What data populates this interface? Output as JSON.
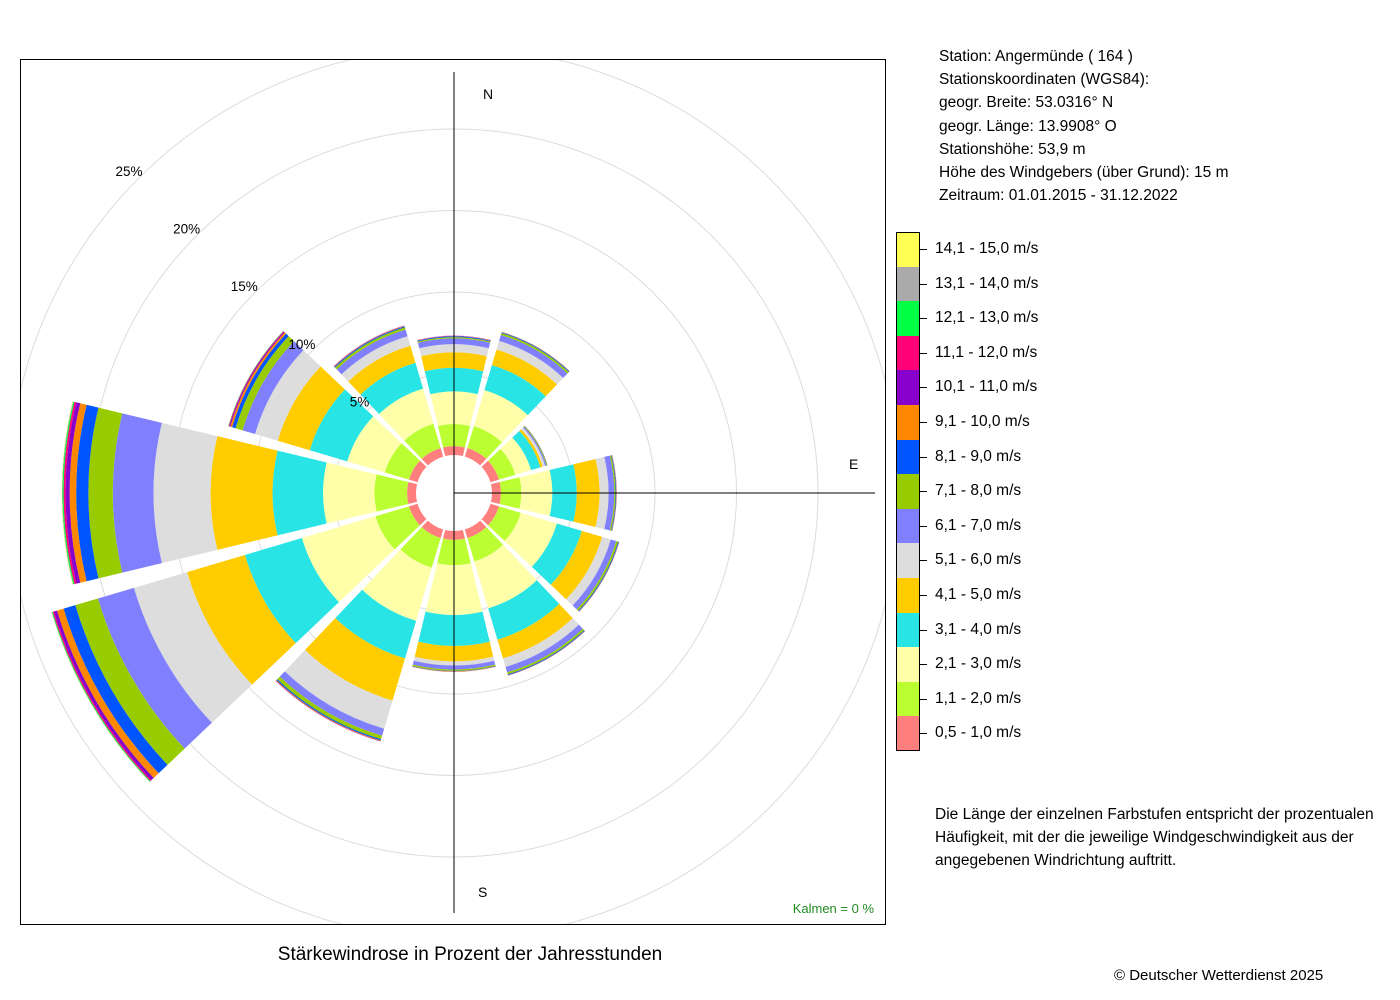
{
  "station": {
    "line1": "Station:  Angermünde  ( 164 )",
    "line2": "Stationskoordinaten (WGS84):",
    "line3": "geogr. Breite: 53.0316° N",
    "line4": "geogr. Länge: 13.9908° O",
    "line5": "Stationshöhe: 53,9 m",
    "line6": "Höhe des Windgebers (über Grund): 15 m",
    "line7": "Zeitraum: 01.01.2015 - 31.12.2022"
  },
  "legend": {
    "items": [
      {
        "label": "14,1 - 15,0 m/s",
        "color": "#ffff55"
      },
      {
        "label": "13,1 - 14,0 m/s",
        "color": "#aaaaaa"
      },
      {
        "label": "12,1 - 13,0 m/s",
        "color": "#00ff44"
      },
      {
        "label": "11,1 - 12,0 m/s",
        "color": "#ff0077"
      },
      {
        "label": "10,1 - 11,0 m/s",
        "color": "#8800cc"
      },
      {
        "label": "9,1 - 10,0 m/s",
        "color": "#ff8800"
      },
      {
        "label": "8,1 - 9,0 m/s",
        "color": "#0055ff"
      },
      {
        "label": "7,1 - 8,0 m/s",
        "color": "#99cc00"
      },
      {
        "label": "6,1 - 7,0 m/s",
        "color": "#8080ff"
      },
      {
        "label": "5,1 - 6,0 m/s",
        "color": "#dddddd"
      },
      {
        "label": "4,1 - 5,0 m/s",
        "color": "#ffcc00"
      },
      {
        "label": "3,1 - 4,0 m/s",
        "color": "#28e4e4"
      },
      {
        "label": "2,1 - 3,0 m/s",
        "color": "#ffffaa"
      },
      {
        "label": "1,1 - 2,0 m/s",
        "color": "#bbff33"
      },
      {
        "label": "0,5 - 1,0 m/s",
        "color": "#ff7f7f"
      }
    ]
  },
  "note": {
    "line1": "Die Länge der einzelnen Farbstufen entspricht der prozentualen",
    "line2": "Häufigkeit, mit der die jeweilige Windgeschwindigkeit aus der",
    "line3": "angegebenen Windrichtung auftritt."
  },
  "calm": "Kalmen  =  0 %",
  "title": "Stärkewindrose in Prozent der Jahresstunden",
  "copyright": "© Deutscher Wetterdienst  2025",
  "chart_data": {
    "type": "wind-rose",
    "title": "Stärkewindrose in Prozent der Jahresstunden",
    "directions_deg": [
      0,
      30,
      60,
      90,
      120,
      150,
      180,
      210,
      240,
      270,
      300,
      330
    ],
    "compass_labels": {
      "N": "N",
      "E": "E",
      "S": "S"
    },
    "ring_labels": [
      "5%",
      "10%",
      "15%",
      "20%",
      "25%"
    ],
    "radius_max_percent": 26.5,
    "calm_percent": 0,
    "speed_classes": [
      "0,5 - 1,0 m/s",
      "1,1 - 2,0 m/s",
      "2,1 - 3,0 m/s",
      "3,1 - 4,0 m/s",
      "4,1 - 5,0 m/s",
      "5,1 - 6,0 m/s",
      "6,1 - 7,0 m/s",
      "7,1 - 8,0 m/s",
      "8,1 - 9,0 m/s",
      "9,1 - 10,0 m/s",
      "10,1 - 11,0 m/s",
      "11,1 - 12,0 m/s",
      "12,1 - 13,0 m/s",
      "13,1 - 14,0 m/s",
      "14,1 - 15,0 m/s"
    ],
    "colors": [
      "#ff7f7f",
      "#bbff33",
      "#ffffaa",
      "#28e4e4",
      "#ffcc00",
      "#dddddd",
      "#8080ff",
      "#99cc00",
      "#0055ff",
      "#ff8800",
      "#8800cc",
      "#ff0077",
      "#00ff44",
      "#aaaaaa",
      "#ffff55"
    ],
    "values_percent_by_direction": [
      [
        0.55,
        1.35,
        2.0,
        1.45,
        0.95,
        0.5,
        0.35,
        0.08,
        0.05,
        0.02,
        0.01,
        0.01,
        0,
        0,
        0
      ],
      [
        0.55,
        1.4,
        2.3,
        1.6,
        1.0,
        0.55,
        0.38,
        0.12,
        0.05,
        0.02,
        0.01,
        0,
        0,
        0,
        0
      ],
      [
        0.55,
        1.05,
        1.0,
        0.6,
        0.15,
        0.15,
        0.08,
        0.05,
        0.02,
        0.01,
        0,
        0,
        0,
        0,
        0
      ],
      [
        0.55,
        1.25,
        1.9,
        1.5,
        1.4,
        0.55,
        0.35,
        0.08,
        0.04,
        0.02,
        0.01,
        0,
        0,
        0,
        0
      ],
      [
        0.55,
        1.4,
        2.3,
        1.6,
        1.3,
        0.55,
        0.35,
        0.12,
        0.05,
        0.02,
        0.01,
        0,
        0,
        0,
        0
      ],
      [
        0.55,
        1.5,
        3.0,
        2.0,
        1.2,
        0.55,
        0.35,
        0.12,
        0.05,
        0.02,
        0.01,
        0,
        0,
        0,
        0
      ],
      [
        0.55,
        1.55,
        3.05,
        1.9,
        0.95,
        0.25,
        0.25,
        0.08,
        0.03,
        0.02,
        0.01,
        0,
        0,
        0,
        0
      ],
      [
        0.55,
        1.9,
        3.4,
        2.4,
        2.7,
        1.8,
        0.45,
        0.22,
        0.08,
        0.04,
        0.02,
        0.01,
        0,
        0,
        0
      ],
      [
        0.55,
        2.15,
        4.7,
        3.65,
        3.7,
        3.4,
        2.3,
        1.45,
        0.75,
        0.42,
        0.2,
        0.08,
        0.05,
        0.02,
        0.01
      ],
      [
        0.55,
        2.0,
        3.15,
        3.1,
        3.8,
        3.5,
        2.5,
        1.5,
        0.75,
        0.4,
        0.25,
        0.12,
        0.07,
        0.03,
        0.02
      ],
      [
        0.55,
        1.55,
        2.4,
        2.4,
        2.05,
        1.45,
        0.8,
        0.45,
        0.22,
        0.12,
        0.06,
        0.04,
        0.02,
        0.01,
        0
      ],
      [
        0.55,
        1.55,
        2.25,
        1.65,
        1.1,
        0.6,
        0.42,
        0.15,
        0.06,
        0.03,
        0.02,
        0.01,
        0,
        0,
        0
      ]
    ]
  }
}
